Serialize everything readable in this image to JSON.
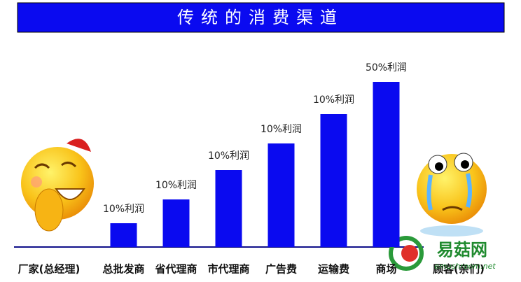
{
  "chart_data": {
    "type": "bar",
    "title": "传统的消费渠道",
    "categories": [
      "总批发商",
      "省代理商",
      "市代理商",
      "广告费",
      "运输费",
      "商场"
    ],
    "values": [
      34,
      68,
      110,
      148,
      190,
      236
    ],
    "annotations": [
      "10%利润",
      "10%利润",
      "10%利润",
      "10%利润",
      "10%利润",
      "50%利润"
    ],
    "color": "#0a0af0",
    "ylim": [
      0,
      240
    ],
    "left_label": "厂家(总经理)",
    "right_label": "顾客(亲们)",
    "watermark": {
      "name": "易菇网",
      "site": "emushroom.net"
    }
  }
}
